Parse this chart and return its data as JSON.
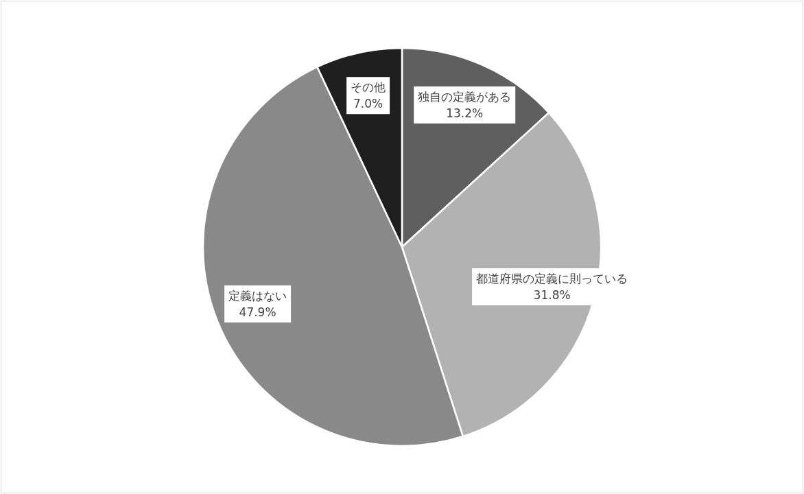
{
  "chart_data": {
    "type": "pie",
    "categories": [
      "独自の定義がある",
      "都道府県の定義に則っている",
      "定義はない",
      "その他"
    ],
    "values": [
      13.2,
      31.8,
      47.9,
      7.0
    ],
    "value_labels": [
      "13.2%",
      "31.8%",
      "47.9%",
      "7.0%"
    ],
    "colors": [
      "#5f5f5f",
      "#b2b2b2",
      "#898989",
      "#1f1f1f"
    ],
    "legend": false
  }
}
